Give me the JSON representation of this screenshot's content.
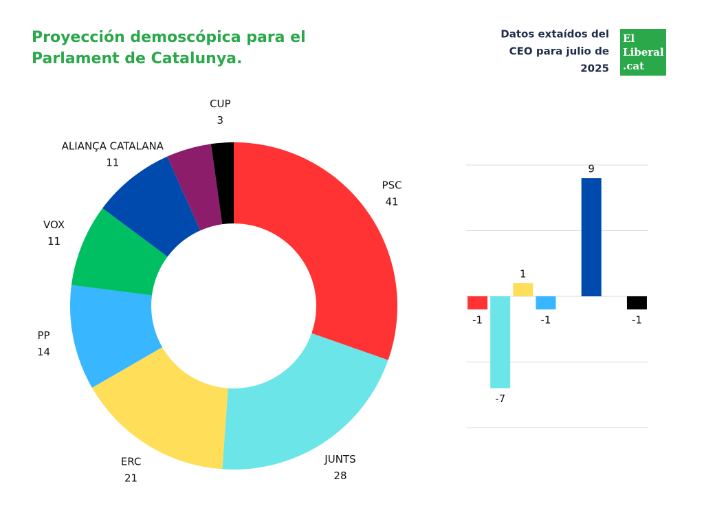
{
  "header": {
    "source": [
      "Datos extaídos del",
      "CEO para julio de",
      "2025"
    ],
    "logo": [
      "El",
      "Liberal",
      ".cat"
    ]
  },
  "chart_data": [
    {
      "type": "donut",
      "title": [
        "Proyección demoscópica para el",
        "Parlament de Catalunya."
      ],
      "categories": [
        "PSC",
        "JUNTS",
        "ERC",
        "PP",
        "VOX",
        "ALIANÇA CATALANA",
        null,
        "CUP"
      ],
      "values": [
        41,
        28,
        21,
        14,
        11,
        11,
        6,
        3
      ],
      "colors": [
        "#ff3334",
        "#6ce5e8",
        "#ffde59",
        "#38b6ff",
        "#00bf63",
        "#004aad",
        "#8c1d6b",
        "#000000"
      ]
    },
    {
      "type": "bar",
      "values": [
        -1,
        -7,
        1,
        -1,
        0,
        9,
        0,
        -1
      ],
      "colors": [
        "#ff3334",
        "#6ce5e8",
        "#ffde59",
        "#38b6ff",
        "#00bf63",
        "#004aad",
        "#8c1d6b",
        "#000000"
      ],
      "ylim": [
        -10,
        10
      ],
      "yticks": [
        -10,
        -5,
        0,
        5,
        10
      ],
      "grid": true
    }
  ]
}
